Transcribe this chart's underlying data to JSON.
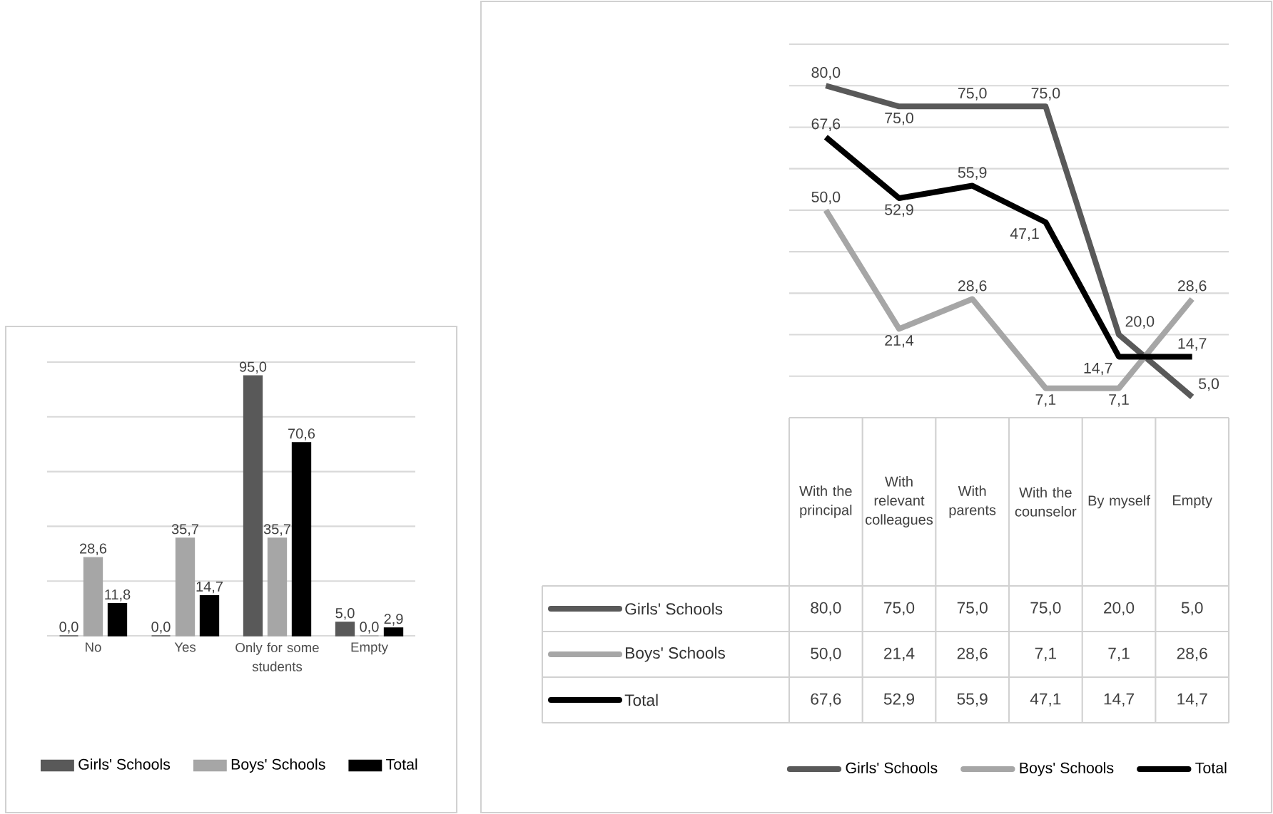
{
  "chart_data": [
    {
      "type": "bar",
      "categories": [
        "No",
        "Yes",
        "Only for some students",
        "Empty"
      ],
      "series": [
        {
          "name": "Girls' Schools",
          "color": "#595959",
          "values": [
            0,
            0,
            95,
            5
          ],
          "value_labels": [
            "0,0",
            "0,0",
            "95,0",
            "5,0"
          ]
        },
        {
          "name": "Boys' Schools",
          "color": "#a6a6a6",
          "values": [
            28.6,
            35.7,
            35.7,
            0
          ],
          "value_labels": [
            "28,6",
            "35,7",
            "35,7",
            "0,0"
          ]
        },
        {
          "name": "Total",
          "color": "#000000",
          "values": [
            11.8,
            14.7,
            70.6,
            2.9
          ],
          "value_labels": [
            "11,8",
            "14,7",
            "70,6",
            "2,9"
          ]
        }
      ],
      "ylim": [
        0,
        100
      ],
      "yticks": [
        0,
        20,
        40,
        60,
        80,
        100
      ],
      "tick_labels": "x",
      "grid": "y",
      "legend": "bottom"
    },
    {
      "type": "line",
      "categories": [
        "With the principal",
        "With relevant colleagues",
        "With parents",
        "With the counselor",
        "By myself",
        "Empty"
      ],
      "series": [
        {
          "name": "Girls' Schools",
          "color": "#595959",
          "values": [
            80,
            75,
            75,
            75,
            20,
            5
          ],
          "value_labels": [
            "80,0",
            "75,0",
            "75,0",
            "75,0",
            "20,0",
            "5,0"
          ]
        },
        {
          "name": "Boys' Schools",
          "color": "#a6a6a6",
          "values": [
            50,
            21.4,
            28.6,
            7.1,
            7.1,
            28.6
          ],
          "value_labels": [
            "50,0",
            "21,4",
            "28,6",
            "7,1",
            "7,1",
            "28,6"
          ]
        },
        {
          "name": "Total",
          "color": "#000000",
          "values": [
            67.6,
            52.9,
            55.9,
            47.1,
            14.7,
            14.7
          ],
          "value_labels": [
            "67,6",
            "52,9",
            "55,9",
            "47,1",
            "14,7",
            "14,7"
          ]
        }
      ],
      "ylim": [
        0,
        90
      ],
      "yticks": [
        0,
        10,
        20,
        30,
        40,
        50,
        60,
        70,
        80,
        90
      ],
      "tick_labels": "x",
      "grid": "y",
      "legend": "bottom"
    }
  ]
}
